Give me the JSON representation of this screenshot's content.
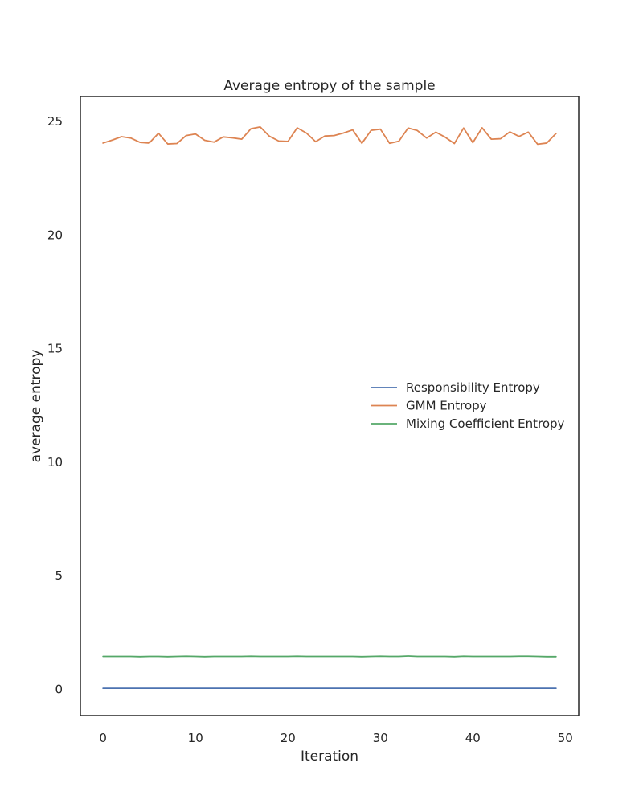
{
  "chart_data": {
    "type": "line",
    "title": "Average entropy of the sample",
    "xlabel": "Iteration",
    "ylabel": "average entropy",
    "xlim": [
      -2.45,
      51.45
    ],
    "ylim": [
      -1.15,
      26.1
    ],
    "xticks": [
      0,
      10,
      20,
      30,
      40,
      50
    ],
    "yticks": [
      0,
      5,
      10,
      15,
      20,
      25
    ],
    "grid": false,
    "legend_position": "center-right",
    "x": [
      0,
      1,
      2,
      3,
      4,
      5,
      6,
      7,
      8,
      9,
      10,
      11,
      12,
      13,
      14,
      15,
      16,
      17,
      18,
      19,
      20,
      21,
      22,
      23,
      24,
      25,
      26,
      27,
      28,
      29,
      30,
      31,
      32,
      33,
      34,
      35,
      36,
      37,
      38,
      39,
      40,
      41,
      42,
      43,
      44,
      45,
      46,
      47,
      48,
      49
    ],
    "series": [
      {
        "name": "Responsibility Entropy",
        "color": "#4c72b0",
        "values": [
          0.05,
          0.05,
          0.05,
          0.05,
          0.05,
          0.05,
          0.05,
          0.05,
          0.05,
          0.05,
          0.05,
          0.05,
          0.05,
          0.05,
          0.05,
          0.05,
          0.05,
          0.05,
          0.05,
          0.05,
          0.05,
          0.05,
          0.05,
          0.05,
          0.05,
          0.05,
          0.05,
          0.05,
          0.05,
          0.05,
          0.05,
          0.05,
          0.05,
          0.05,
          0.05,
          0.05,
          0.05,
          0.05,
          0.05,
          0.05,
          0.05,
          0.05,
          0.05,
          0.05,
          0.05,
          0.05,
          0.05,
          0.05,
          0.05,
          0.05
        ]
      },
      {
        "name": "GMM Entropy",
        "color": "#dd8452",
        "values": [
          24.05,
          24.18,
          24.33,
          24.27,
          24.08,
          24.05,
          24.48,
          24.01,
          24.03,
          24.38,
          24.45,
          24.17,
          24.09,
          24.32,
          24.28,
          24.22,
          24.68,
          24.76,
          24.35,
          24.14,
          24.12,
          24.72,
          24.49,
          24.11,
          24.36,
          24.38,
          24.49,
          24.63,
          24.04,
          24.61,
          24.66,
          24.04,
          24.13,
          24.71,
          24.6,
          24.27,
          24.53,
          24.31,
          24.03,
          24.71,
          24.07,
          24.72,
          24.22,
          24.24,
          24.54,
          24.34,
          24.53,
          24.0,
          24.05,
          24.47
        ]
      },
      {
        "name": "Mixing Coefficient Entropy",
        "color": "#55a868",
        "values": [
          1.45,
          1.45,
          1.45,
          1.45,
          1.44,
          1.45,
          1.45,
          1.44,
          1.45,
          1.46,
          1.45,
          1.44,
          1.45,
          1.45,
          1.45,
          1.45,
          1.46,
          1.45,
          1.45,
          1.45,
          1.45,
          1.46,
          1.45,
          1.45,
          1.45,
          1.45,
          1.45,
          1.45,
          1.44,
          1.45,
          1.46,
          1.45,
          1.45,
          1.47,
          1.45,
          1.45,
          1.45,
          1.45,
          1.44,
          1.46,
          1.45,
          1.45,
          1.45,
          1.45,
          1.45,
          1.46,
          1.46,
          1.45,
          1.44,
          1.44
        ]
      }
    ]
  }
}
